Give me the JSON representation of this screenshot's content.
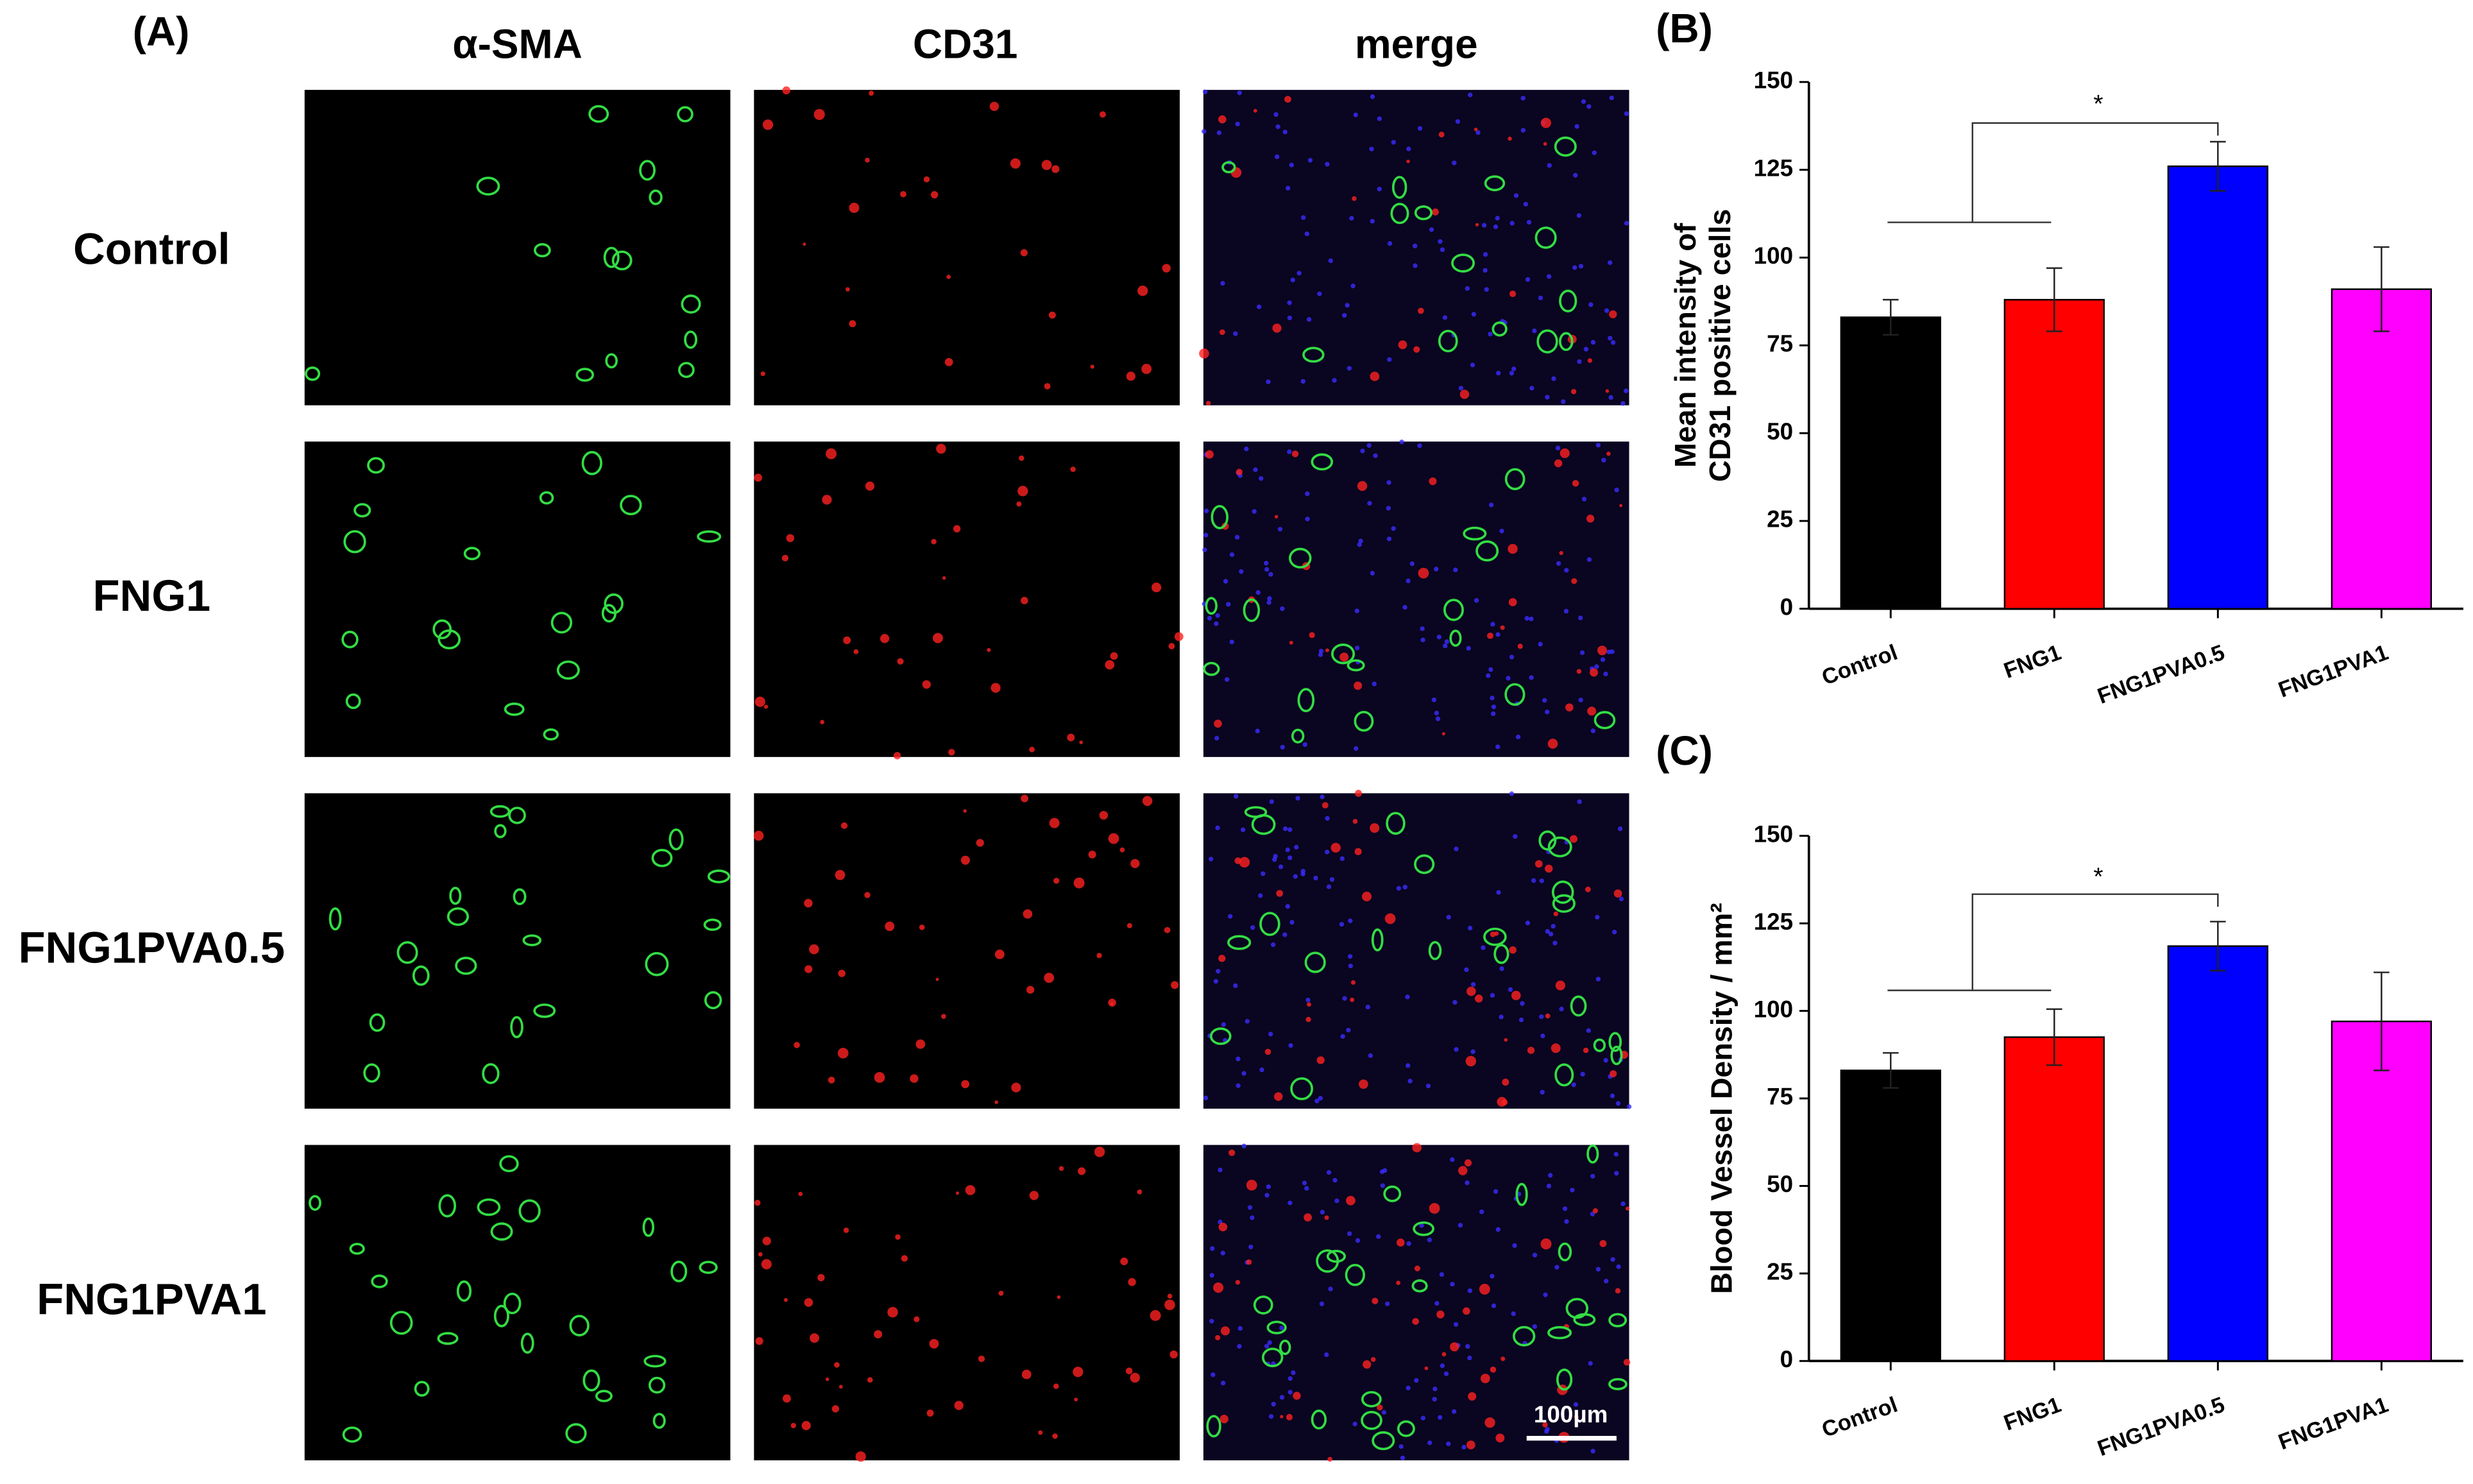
{
  "figure": {
    "panel_label": "(A)",
    "columns": [
      "α-SMA",
      "CD31",
      "merge"
    ],
    "rows": [
      "Control",
      "FNG1",
      "FNG1PVA0.5",
      "FNG1PVA1"
    ],
    "scale_bar": "100µm"
  },
  "chart_data": [
    {
      "type": "bar",
      "panel_label": "(B)",
      "ylabel": [
        "Mean intensity of",
        "CD31 positive cells"
      ],
      "categories": [
        "Control",
        "FNG1",
        "FNG1PVA0.5",
        "FNG1PVA1"
      ],
      "values": [
        83,
        88,
        126,
        91
      ],
      "errors": [
        5,
        9,
        7,
        12
      ],
      "colors": [
        "#000000",
        "#ff0000",
        "#0000ff",
        "#ff00ff"
      ],
      "ylim": [
        0,
        150
      ],
      "yticks": [
        0,
        25,
        50,
        75,
        100,
        125,
        150
      ],
      "annotation": "*"
    },
    {
      "type": "bar",
      "panel_label": "(C)",
      "ylabel": [
        "Blood Vessel Density / mm²"
      ],
      "categories": [
        "Control",
        "FNG1",
        "FNG1PVA0.5",
        "FNG1PVA1"
      ],
      "values": [
        83,
        92.5,
        118.5,
        97
      ],
      "errors": [
        5,
        8,
        7,
        14
      ],
      "colors": [
        "#000000",
        "#ff0000",
        "#0000ff",
        "#ff00ff"
      ],
      "ylim": [
        0,
        150
      ],
      "yticks": [
        0,
        25,
        50,
        75,
        100,
        125,
        150
      ],
      "annotation": "*"
    }
  ]
}
